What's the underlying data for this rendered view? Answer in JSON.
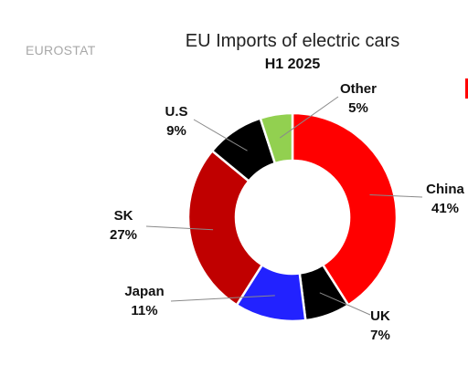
{
  "source_label": "EUROSTAT",
  "chart_data": {
    "type": "pie",
    "donut": true,
    "title": "EU Imports of electric cars",
    "subtitle": "H1 2025",
    "unit": "%",
    "categories": [
      "China",
      "UK",
      "Japan",
      "SK",
      "U.S",
      "Other"
    ],
    "values": [
      41,
      7,
      11,
      27,
      9,
      5
    ],
    "colors": [
      "#ff0000",
      "#000000",
      "#2222ff",
      "#c00000",
      "#000000",
      "#92d050"
    ],
    "labels": [
      "41%",
      "7%",
      "11%",
      "27%",
      "9%",
      "5%"
    ],
    "legend": "none"
  }
}
